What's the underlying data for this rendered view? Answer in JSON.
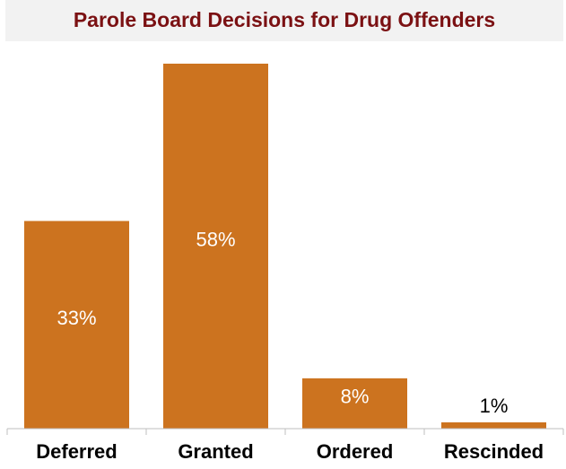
{
  "chart_data": {
    "type": "bar",
    "title": "Parole Board Decisions for Drug Offenders",
    "categories": [
      "Deferred",
      "Granted",
      "Ordered",
      "Rescinded"
    ],
    "values": [
      33,
      58,
      8,
      1
    ],
    "value_labels": [
      "33%",
      "58%",
      "8%",
      "1%"
    ],
    "color": "#cc731f"
  }
}
